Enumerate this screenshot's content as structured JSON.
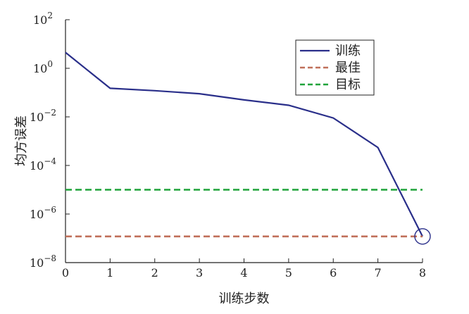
{
  "chart_data": {
    "type": "line",
    "xlabel": "训练步数",
    "ylabel": "均方误差",
    "y_scale": "log",
    "xlim": [
      0,
      8
    ],
    "ylim": [
      1e-08,
      100
    ],
    "x_ticks": [
      "0",
      "1",
      "2",
      "3",
      "4",
      "5",
      "6",
      "7",
      "8"
    ],
    "y_ticks": [
      {
        "base": "10",
        "exp": "2",
        "value": 100
      },
      {
        "base": "10",
        "exp": "0",
        "value": 1
      },
      {
        "base": "10",
        "exp": "−2",
        "value": 0.01
      },
      {
        "base": "10",
        "exp": "−4",
        "value": 0.0001
      },
      {
        "base": "10",
        "exp": "−6",
        "value": 1e-06
      },
      {
        "base": "10",
        "exp": "−8",
        "value": 1e-08
      }
    ],
    "grid": false,
    "legend_position": "top-right",
    "series": [
      {
        "name": "训练",
        "style": "solid",
        "color": "#2a2f8a",
        "x": [
          0,
          1,
          2,
          3,
          4,
          5,
          6,
          7,
          8
        ],
        "y": [
          4.5,
          0.15,
          0.12,
          0.09,
          0.05,
          0.03,
          0.009,
          0.00055,
          1.2e-07
        ]
      },
      {
        "name": "最佳",
        "style": "dashed",
        "color": "#c0705a",
        "x": [
          0,
          8
        ],
        "y": [
          1.2e-07,
          1.2e-07
        ]
      },
      {
        "name": "目标",
        "style": "dashed",
        "color": "#1fa33a",
        "x": [
          0,
          8
        ],
        "y": [
          1e-05,
          1e-05
        ]
      }
    ],
    "marker": {
      "x": 8,
      "y": 1.2e-07,
      "shape": "circle",
      "color": "#2a2f8a"
    }
  }
}
